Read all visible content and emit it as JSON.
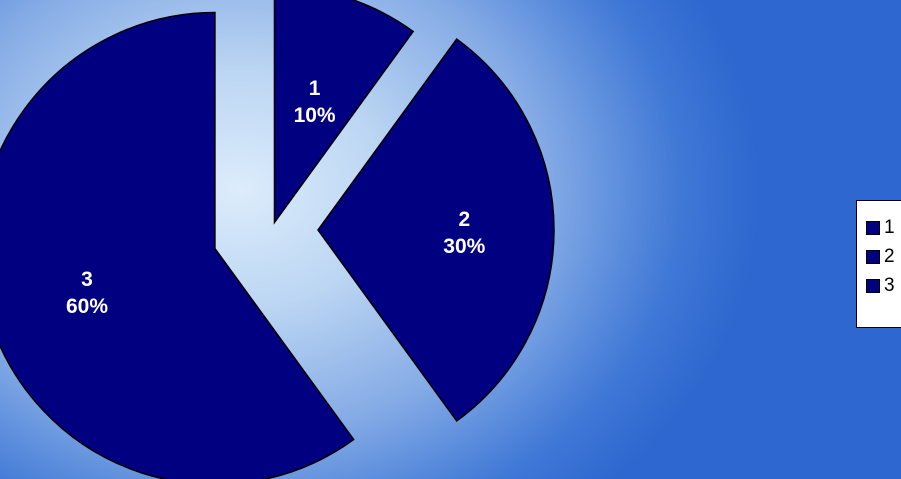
{
  "chart_data": {
    "type": "pie",
    "categories": [
      "1",
      "2",
      "3"
    ],
    "values": [
      10,
      30,
      60
    ],
    "data_labels": [
      {
        "category": "1",
        "percent": "10%"
      },
      {
        "category": "2",
        "percent": "30%"
      },
      {
        "category": "3",
        "percent": "60%"
      }
    ],
    "legend": {
      "placement": "right",
      "entries": [
        "1",
        "2",
        "3"
      ]
    },
    "exploded": true,
    "colors": {
      "slice_fill": "#000080",
      "slice_stroke": "#000000",
      "label_text": "#ffffff"
    }
  }
}
